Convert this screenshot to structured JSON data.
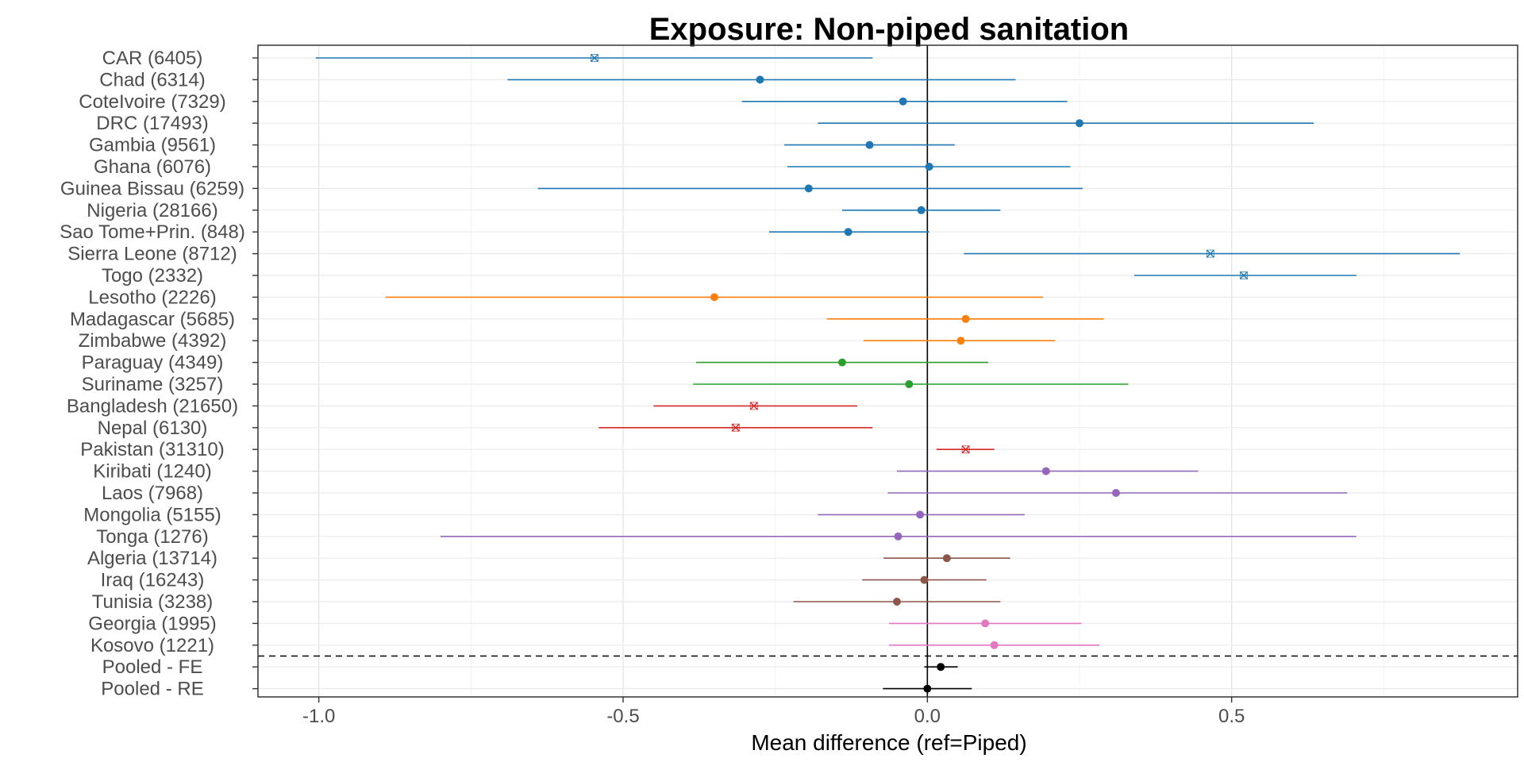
{
  "chart_data": {
    "type": "forest",
    "title": "Exposure: Non-piped sanitation",
    "xlabel": "Mean difference (ref=Piped)",
    "ylabel": "",
    "xlim": [
      -1.1,
      0.97
    ],
    "x_ticks": [
      -1.0,
      -0.5,
      0.0,
      0.5
    ],
    "x_tick_labels": [
      "-1.0",
      "-0.5",
      "0.0",
      "0.5"
    ],
    "grid": true,
    "reference_line_x": 0,
    "separator": "dashed line above pooled estimates",
    "rows": [
      {
        "label": "CAR (6405)",
        "estimate": -0.547,
        "lower": -1.005,
        "upper": -0.09,
        "color": "#1f77b4",
        "marker": "x"
      },
      {
        "label": "Chad (6314)",
        "estimate": -0.275,
        "lower": -0.69,
        "upper": 0.145,
        "color": "#1f77b4",
        "marker": "circle"
      },
      {
        "label": "CoteIvoire (7329)",
        "estimate": -0.04,
        "lower": -0.305,
        "upper": 0.23,
        "color": "#1f77b4",
        "marker": "circle"
      },
      {
        "label": "DRC (17493)",
        "estimate": 0.25,
        "lower": -0.18,
        "upper": 0.635,
        "color": "#1f77b4",
        "marker": "circle"
      },
      {
        "label": "Gambia (9561)",
        "estimate": -0.095,
        "lower": -0.235,
        "upper": 0.045,
        "color": "#1f77b4",
        "marker": "circle"
      },
      {
        "label": "Ghana (6076)",
        "estimate": 0.003,
        "lower": -0.23,
        "upper": 0.235,
        "color": "#1f77b4",
        "marker": "circle"
      },
      {
        "label": "Guinea Bissau (6259)",
        "estimate": -0.195,
        "lower": -0.64,
        "upper": 0.255,
        "color": "#1f77b4",
        "marker": "circle"
      },
      {
        "label": "Nigeria (28166)",
        "estimate": -0.01,
        "lower": -0.14,
        "upper": 0.12,
        "color": "#1f77b4",
        "marker": "circle"
      },
      {
        "label": "Sao Tome+Prin. (848)",
        "estimate": -0.13,
        "lower": -0.26,
        "upper": 0.003,
        "color": "#1f77b4",
        "marker": "circle"
      },
      {
        "label": "Sierra Leone (8712)",
        "estimate": 0.465,
        "lower": 0.06,
        "upper": 0.875,
        "color": "#1f77b4",
        "marker": "x"
      },
      {
        "label": "Togo (2332)",
        "estimate": 0.52,
        "lower": 0.34,
        "upper": 0.705,
        "color": "#1f77b4",
        "marker": "x"
      },
      {
        "label": "Lesotho (2226)",
        "estimate": -0.35,
        "lower": -0.89,
        "upper": 0.19,
        "color": "#ff7f0e",
        "marker": "circle"
      },
      {
        "label": "Madagascar (5685)",
        "estimate": 0.063,
        "lower": -0.165,
        "upper": 0.29,
        "color": "#ff7f0e",
        "marker": "circle"
      },
      {
        "label": "Zimbabwe (4392)",
        "estimate": 0.055,
        "lower": -0.105,
        "upper": 0.21,
        "color": "#ff7f0e",
        "marker": "circle"
      },
      {
        "label": "Paraguay (4349)",
        "estimate": -0.14,
        "lower": -0.38,
        "upper": 0.1,
        "color": "#2ca02c",
        "marker": "circle"
      },
      {
        "label": "Suriname (3257)",
        "estimate": -0.03,
        "lower": -0.385,
        "upper": 0.33,
        "color": "#2ca02c",
        "marker": "circle"
      },
      {
        "label": "Bangladesh (21650)",
        "estimate": -0.285,
        "lower": -0.45,
        "upper": -0.115,
        "color": "#d62728",
        "marker": "x"
      },
      {
        "label": "Nepal (6130)",
        "estimate": -0.315,
        "lower": -0.54,
        "upper": -0.09,
        "color": "#d62728",
        "marker": "x"
      },
      {
        "label": "Pakistan (31310)",
        "estimate": 0.063,
        "lower": 0.015,
        "upper": 0.11,
        "color": "#d62728",
        "marker": "x"
      },
      {
        "label": "Kiribati (1240)",
        "estimate": 0.195,
        "lower": -0.05,
        "upper": 0.445,
        "color": "#9467bd",
        "marker": "circle"
      },
      {
        "label": "Laos (7968)",
        "estimate": 0.31,
        "lower": -0.065,
        "upper": 0.69,
        "color": "#9467bd",
        "marker": "circle"
      },
      {
        "label": "Mongolia (5155)",
        "estimate": -0.012,
        "lower": -0.18,
        "upper": 0.16,
        "color": "#9467bd",
        "marker": "circle"
      },
      {
        "label": "Tonga (1276)",
        "estimate": -0.048,
        "lower": -0.8,
        "upper": 0.705,
        "color": "#9467bd",
        "marker": "circle"
      },
      {
        "label": "Algeria (13714)",
        "estimate": 0.032,
        "lower": -0.072,
        "upper": 0.136,
        "color": "#8c564b",
        "marker": "circle"
      },
      {
        "label": "Iraq (16243)",
        "estimate": -0.005,
        "lower": -0.107,
        "upper": 0.097,
        "color": "#8c564b",
        "marker": "circle"
      },
      {
        "label": "Tunisia (3238)",
        "estimate": -0.05,
        "lower": -0.22,
        "upper": 0.12,
        "color": "#8c564b",
        "marker": "circle"
      },
      {
        "label": "Georgia (1995)",
        "estimate": 0.095,
        "lower": -0.063,
        "upper": 0.253,
        "color": "#e377c2",
        "marker": "circle"
      },
      {
        "label": "Kosovo (1221)",
        "estimate": 0.11,
        "lower": -0.063,
        "upper": 0.283,
        "color": "#e377c2",
        "marker": "circle"
      },
      {
        "label": "Pooled - FE",
        "estimate": 0.022,
        "lower": -0.005,
        "upper": 0.05,
        "color": "#000000",
        "marker": "circle"
      },
      {
        "label": "Pooled - RE",
        "estimate": 0.0,
        "lower": -0.073,
        "upper": 0.073,
        "color": "#000000",
        "marker": "circle"
      }
    ]
  }
}
